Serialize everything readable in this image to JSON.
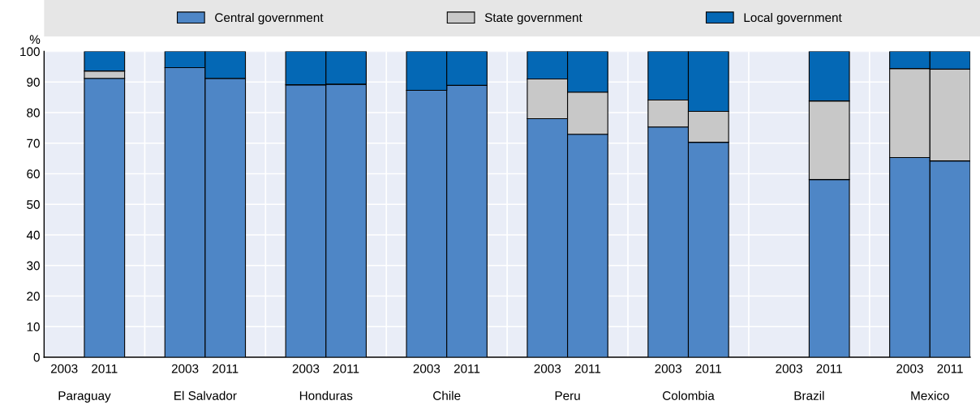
{
  "chart_data": {
    "type": "bar",
    "stacked": true,
    "ylabel": "%",
    "categories": [
      "2003",
      "2011",
      "2003",
      "2011",
      "2003",
      "2011",
      "2003",
      "2011",
      "2003",
      "2011",
      "2003",
      "2011",
      "2003",
      "2011",
      "2003",
      "2011"
    ],
    "annotations": [
      "Paraguay",
      "El Salvador",
      "Honduras",
      "Chile",
      "Peru",
      "Colombia",
      "Brazil",
      "Mexico"
    ],
    "series": [
      {
        "name": "Central government",
        "color": "#4e86c6",
        "values": [
          null,
          91.2,
          94.7,
          91.2,
          89.1,
          89.3,
          87.3,
          88.9,
          78.0,
          72.9,
          75.3,
          70.3,
          null,
          58.1,
          65.3,
          64.2
        ]
      },
      {
        "name": "State government",
        "color": "#c8c8c8",
        "values": [
          null,
          2.4,
          0,
          0,
          0,
          0,
          0,
          0,
          13.0,
          13.8,
          8.8,
          10.1,
          null,
          25.7,
          29.1,
          30.0
        ]
      },
      {
        "name": "Local government",
        "color": "#0468b5",
        "values": [
          null,
          6.4,
          5.3,
          8.8,
          10.9,
          10.7,
          12.7,
          11.1,
          9.0,
          13.3,
          15.9,
          19.6,
          null,
          16.2,
          5.6,
          5.8
        ]
      }
    ],
    "ylim": [
      0,
      100
    ],
    "yticks": [
      0,
      10,
      20,
      30,
      40,
      50,
      60,
      70,
      80,
      90,
      100
    ],
    "grid": "y",
    "legend": "top"
  }
}
